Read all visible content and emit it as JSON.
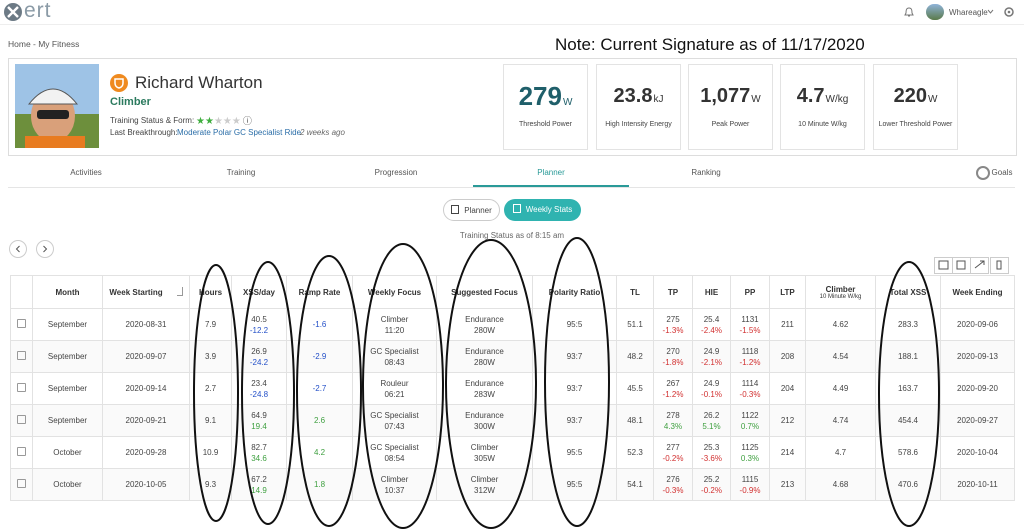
{
  "top_bar": {
    "logo": "ert",
    "user": "Whareagle"
  },
  "breadcrumb": "Home - My Fitness",
  "annotation": "Note: Current Signature as of 11/17/2020",
  "profile": {
    "name": "Richard Wharton",
    "type": "Climber",
    "status_label": "Training Status & Form:",
    "stars_filled": 2,
    "stars_total": 5,
    "breakthrough_label": "Last Breakthrough:",
    "breakthrough_link": "Moderate Polar GC Specialist Ride",
    "breakthrough_time": "2 weeks ago"
  },
  "stats": [
    {
      "value": "279",
      "unit": "W",
      "label": "Threshold Power"
    },
    {
      "value": "23.8",
      "unit": "kJ",
      "label": "High Intensity Energy"
    },
    {
      "value": "1,077",
      "unit": "W",
      "label": "Peak Power"
    },
    {
      "value": "4.7",
      "unit": "W/kg",
      "label": "10 Minute W/kg"
    },
    {
      "value": "220",
      "unit": "W",
      "label": "Lower Threshold Power"
    }
  ],
  "tabs": [
    "Activities",
    "Training",
    "Progression",
    "Planner",
    "Ranking",
    "Goals"
  ],
  "active_tab": 3,
  "toggle": [
    "Planner",
    "Weekly Stats"
  ],
  "status_note": "Training Status as of 8:15 am",
  "table": {
    "headers": [
      "Month",
      "Week Starting",
      "Hours",
      "XSS/day",
      "Ramp Rate",
      "Weekly Focus",
      "Suggested Focus",
      "Polarity Ratio",
      "TL",
      "TP",
      "HIE",
      "PP",
      "LTP",
      [
        "Climber",
        "10 Minute W/kg"
      ],
      "Total XSS",
      "Week Ending"
    ],
    "rows": [
      [
        "September",
        "2020-08-31",
        "7.9",
        [
          "40.5",
          "-12.2"
        ],
        "-1.6",
        [
          "Climber",
          "11:20"
        ],
        [
          "Endurance",
          "280W"
        ],
        "95:5",
        "51.1",
        [
          "275",
          "-1.3%"
        ],
        [
          "25.4",
          "-2.4%"
        ],
        [
          "1131",
          "-1.5%"
        ],
        "211",
        "4.62",
        "283.3",
        "2020-09-06"
      ],
      [
        "September",
        "2020-09-07",
        "3.9",
        [
          "26.9",
          "-24.2"
        ],
        "-2.9",
        [
          "GC Specialist",
          "08:43"
        ],
        [
          "Endurance",
          "280W"
        ],
        "93:7",
        "48.2",
        [
          "270",
          "-1.8%"
        ],
        [
          "24.9",
          "-2.1%"
        ],
        [
          "1118",
          "-1.2%"
        ],
        "208",
        "4.54",
        "188.1",
        "2020-09-13"
      ],
      [
        "September",
        "2020-09-14",
        "2.7",
        [
          "23.4",
          "-24.8"
        ],
        "-2.7",
        [
          "Rouleur",
          "06:21"
        ],
        [
          "Endurance",
          "283W"
        ],
        "93:7",
        "45.5",
        [
          "267",
          "-1.2%"
        ],
        [
          "24.9",
          "-0.1%"
        ],
        [
          "1114",
          "-0.3%"
        ],
        "204",
        "4.49",
        "163.7",
        "2020-09-20"
      ],
      [
        "September",
        "2020-09-21",
        "9.1",
        [
          "64.9",
          "19.4"
        ],
        "2.6",
        [
          "GC Specialist",
          "07:43"
        ],
        [
          "Endurance",
          "300W"
        ],
        "93:7",
        "48.1",
        [
          "278",
          "4.3%"
        ],
        [
          "26.2",
          "5.1%"
        ],
        [
          "1122",
          "0.7%"
        ],
        "212",
        "4.74",
        "454.4",
        "2020-09-27"
      ],
      [
        "October",
        "2020-09-28",
        "10.9",
        [
          "82.7",
          "34.6"
        ],
        "4.2",
        [
          "GC Specialist",
          "08:54"
        ],
        [
          "Climber",
          "305W"
        ],
        "95:5",
        "52.3",
        [
          "277",
          "-0.2%"
        ],
        [
          "25.3",
          "-3.6%"
        ],
        [
          "1125",
          "0.3%"
        ],
        "214",
        "4.7",
        "578.6",
        "2020-10-04"
      ],
      [
        "October",
        "2020-10-05",
        "9.3",
        [
          "67.2",
          "14.9"
        ],
        "1.8",
        [
          "Climber",
          "10:37"
        ],
        [
          "Climber",
          "312W"
        ],
        "95:5",
        "54.1",
        [
          "276",
          "-0.3%"
        ],
        [
          "25.2",
          "-0.2%"
        ],
        [
          "1115",
          "-0.9%"
        ],
        "213",
        "4.68",
        "470.6",
        "2020-10-11"
      ]
    ]
  }
}
